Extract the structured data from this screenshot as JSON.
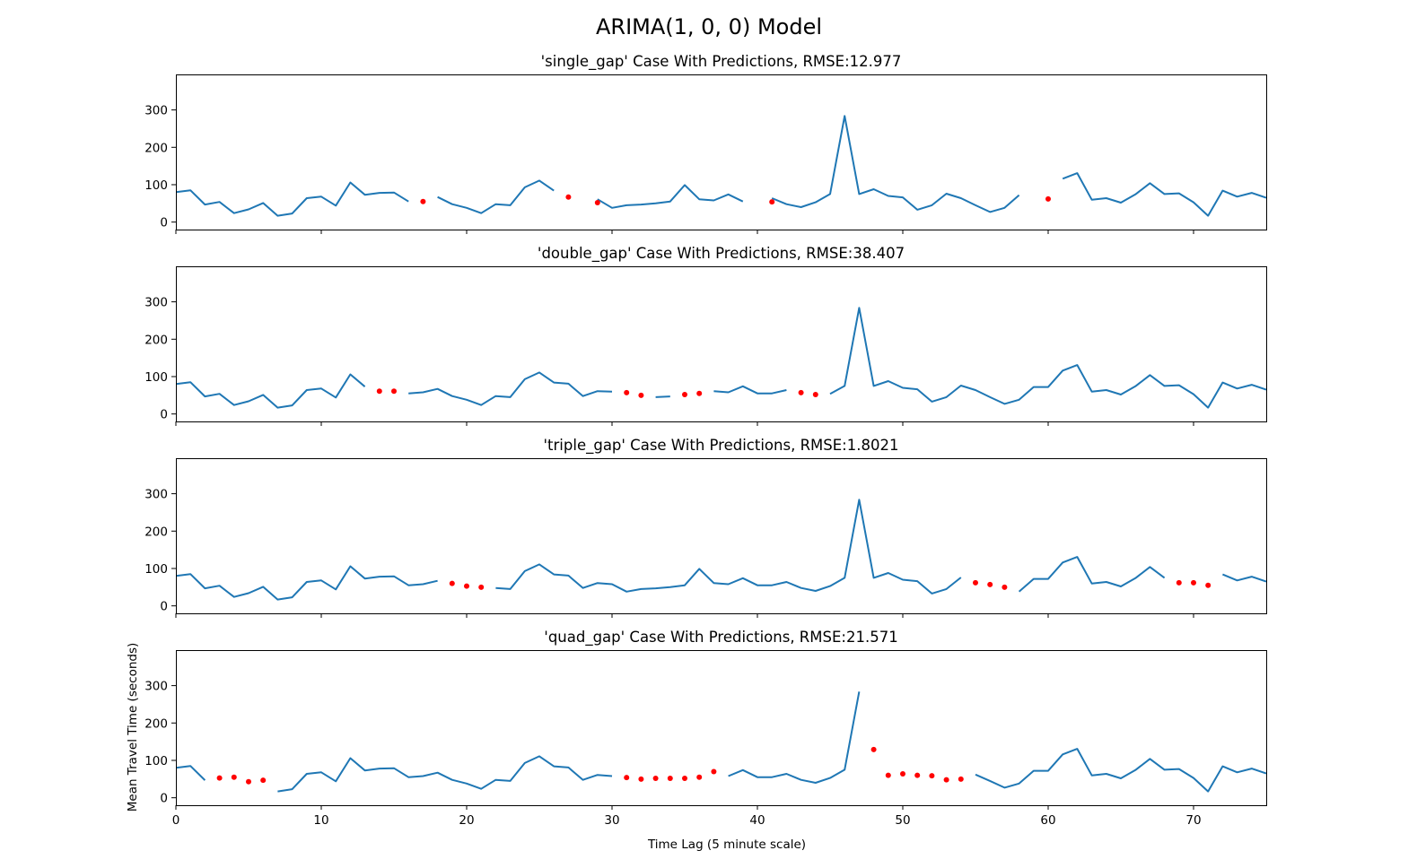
{
  "suptitle": "ARIMA(1, 0, 0) Model",
  "xlabel": "Time Lag (5 minute scale)",
  "ylabel": "Mean Travel Time (seconds)",
  "chart_data": [
    {
      "type": "line",
      "title": "'single_gap' Case With Predictions, RMSE:12.977",
      "xlim": [
        0,
        75
      ],
      "ylim": [
        -20,
        395
      ],
      "xticks": [
        0,
        10,
        20,
        30,
        40,
        50,
        60,
        70
      ],
      "yticks": [
        0,
        100,
        200,
        300
      ],
      "show_xtick_labels": false,
      "observed": [
        80,
        85,
        47,
        54,
        24,
        34,
        51,
        17,
        23,
        64,
        68,
        44,
        106,
        73,
        78,
        79,
        55,
        null,
        67,
        48,
        38,
        24,
        48,
        45,
        93,
        111,
        84,
        null,
        null,
        61,
        38,
        45,
        47,
        50,
        55,
        99,
        61,
        58,
        74,
        55,
        null,
        64,
        48,
        40,
        53,
        75,
        284,
        75,
        88,
        70,
        66,
        33,
        45,
        76,
        64,
        45,
        27,
        38,
        72,
        null,
        null,
        116,
        131,
        60,
        64,
        52,
        74,
        104,
        75,
        77,
        53,
        17,
        84,
        68,
        78,
        65
      ],
      "predicted": [
        [
          17,
          55
        ],
        [
          27,
          67
        ],
        [
          29,
          52
        ],
        [
          41,
          54
        ],
        [
          60,
          62
        ]
      ]
    },
    {
      "type": "line",
      "title": "'double_gap' Case With Predictions, RMSE:38.407",
      "xlim": [
        0,
        75
      ],
      "ylim": [
        -20,
        395
      ],
      "xticks": [
        0,
        10,
        20,
        30,
        40,
        50,
        60,
        70
      ],
      "yticks": [
        0,
        100,
        200,
        300
      ],
      "show_xtick_labels": false,
      "observed": [
        80,
        85,
        47,
        54,
        24,
        34,
        51,
        17,
        23,
        64,
        68,
        44,
        106,
        73,
        null,
        null,
        55,
        58,
        67,
        48,
        38,
        24,
        48,
        45,
        93,
        111,
        84,
        81,
        48,
        61,
        60,
        null,
        null,
        45,
        47,
        null,
        null,
        61,
        58,
        74,
        55,
        55,
        64,
        null,
        null,
        54,
        75,
        284,
        75,
        88,
        70,
        66,
        33,
        45,
        76,
        64,
        45,
        27,
        38,
        72,
        72,
        116,
        131,
        60,
        64,
        52,
        74,
        104,
        75,
        77,
        53,
        17,
        84,
        68,
        78,
        65
      ],
      "predicted": [
        [
          14,
          61
        ],
        [
          15,
          61
        ],
        [
          31,
          57
        ],
        [
          32,
          50
        ],
        [
          35,
          52
        ],
        [
          36,
          55
        ],
        [
          43,
          57
        ],
        [
          44,
          52
        ]
      ]
    },
    {
      "type": "line",
      "title": "'triple_gap' Case With Predictions, RMSE:1.8021",
      "xlim": [
        0,
        75
      ],
      "ylim": [
        -20,
        395
      ],
      "xticks": [
        0,
        10,
        20,
        30,
        40,
        50,
        60,
        70
      ],
      "yticks": [
        0,
        100,
        200,
        300
      ],
      "show_xtick_labels": false,
      "observed": [
        80,
        85,
        47,
        54,
        24,
        34,
        51,
        17,
        23,
        64,
        68,
        44,
        106,
        73,
        78,
        79,
        55,
        58,
        67,
        null,
        null,
        null,
        48,
        45,
        93,
        111,
        84,
        81,
        48,
        61,
        58,
        38,
        45,
        47,
        50,
        55,
        99,
        61,
        58,
        74,
        55,
        55,
        64,
        48,
        40,
        53,
        75,
        284,
        75,
        88,
        70,
        66,
        33,
        45,
        76,
        null,
        null,
        null,
        38,
        72,
        72,
        116,
        131,
        60,
        64,
        52,
        74,
        104,
        75,
        null,
        null,
        null,
        84,
        68,
        78,
        65
      ],
      "predicted": [
        [
          19,
          60
        ],
        [
          20,
          53
        ],
        [
          21,
          50
        ],
        [
          55,
          62
        ],
        [
          56,
          57
        ],
        [
          57,
          50
        ],
        [
          69,
          62
        ],
        [
          70,
          62
        ],
        [
          71,
          55
        ]
      ]
    },
    {
      "type": "line",
      "title": "'quad_gap' Case With Predictions, RMSE:21.571",
      "xlim": [
        0,
        75
      ],
      "ylim": [
        -20,
        395
      ],
      "xticks": [
        0,
        10,
        20,
        30,
        40,
        50,
        60,
        70
      ],
      "yticks": [
        0,
        100,
        200,
        300
      ],
      "show_xtick_labels": true,
      "observed": [
        80,
        85,
        47,
        null,
        null,
        null,
        null,
        17,
        23,
        64,
        68,
        44,
        106,
        73,
        78,
        79,
        55,
        58,
        67,
        48,
        38,
        24,
        48,
        45,
        93,
        111,
        84,
        81,
        48,
        61,
        58,
        null,
        null,
        null,
        null,
        null,
        null,
        null,
        58,
        74,
        55,
        55,
        64,
        48,
        40,
        53,
        75,
        284,
        null,
        null,
        null,
        null,
        null,
        null,
        null,
        62,
        45,
        27,
        38,
        72,
        72,
        116,
        131,
        60,
        64,
        52,
        74,
        104,
        75,
        77,
        53,
        17,
        84,
        68,
        78,
        65
      ],
      "predicted": [
        [
          3,
          53
        ],
        [
          4,
          55
        ],
        [
          5,
          43
        ],
        [
          6,
          47
        ],
        [
          31,
          54
        ],
        [
          32,
          50
        ],
        [
          33,
          52
        ],
        [
          34,
          52
        ],
        [
          35,
          52
        ],
        [
          36,
          55
        ],
        [
          37,
          70
        ],
        [
          48,
          129
        ],
        [
          49,
          60
        ],
        [
          50,
          64
        ],
        [
          51,
          60
        ],
        [
          52,
          59
        ],
        [
          53,
          48
        ],
        [
          54,
          50
        ]
      ]
    }
  ]
}
